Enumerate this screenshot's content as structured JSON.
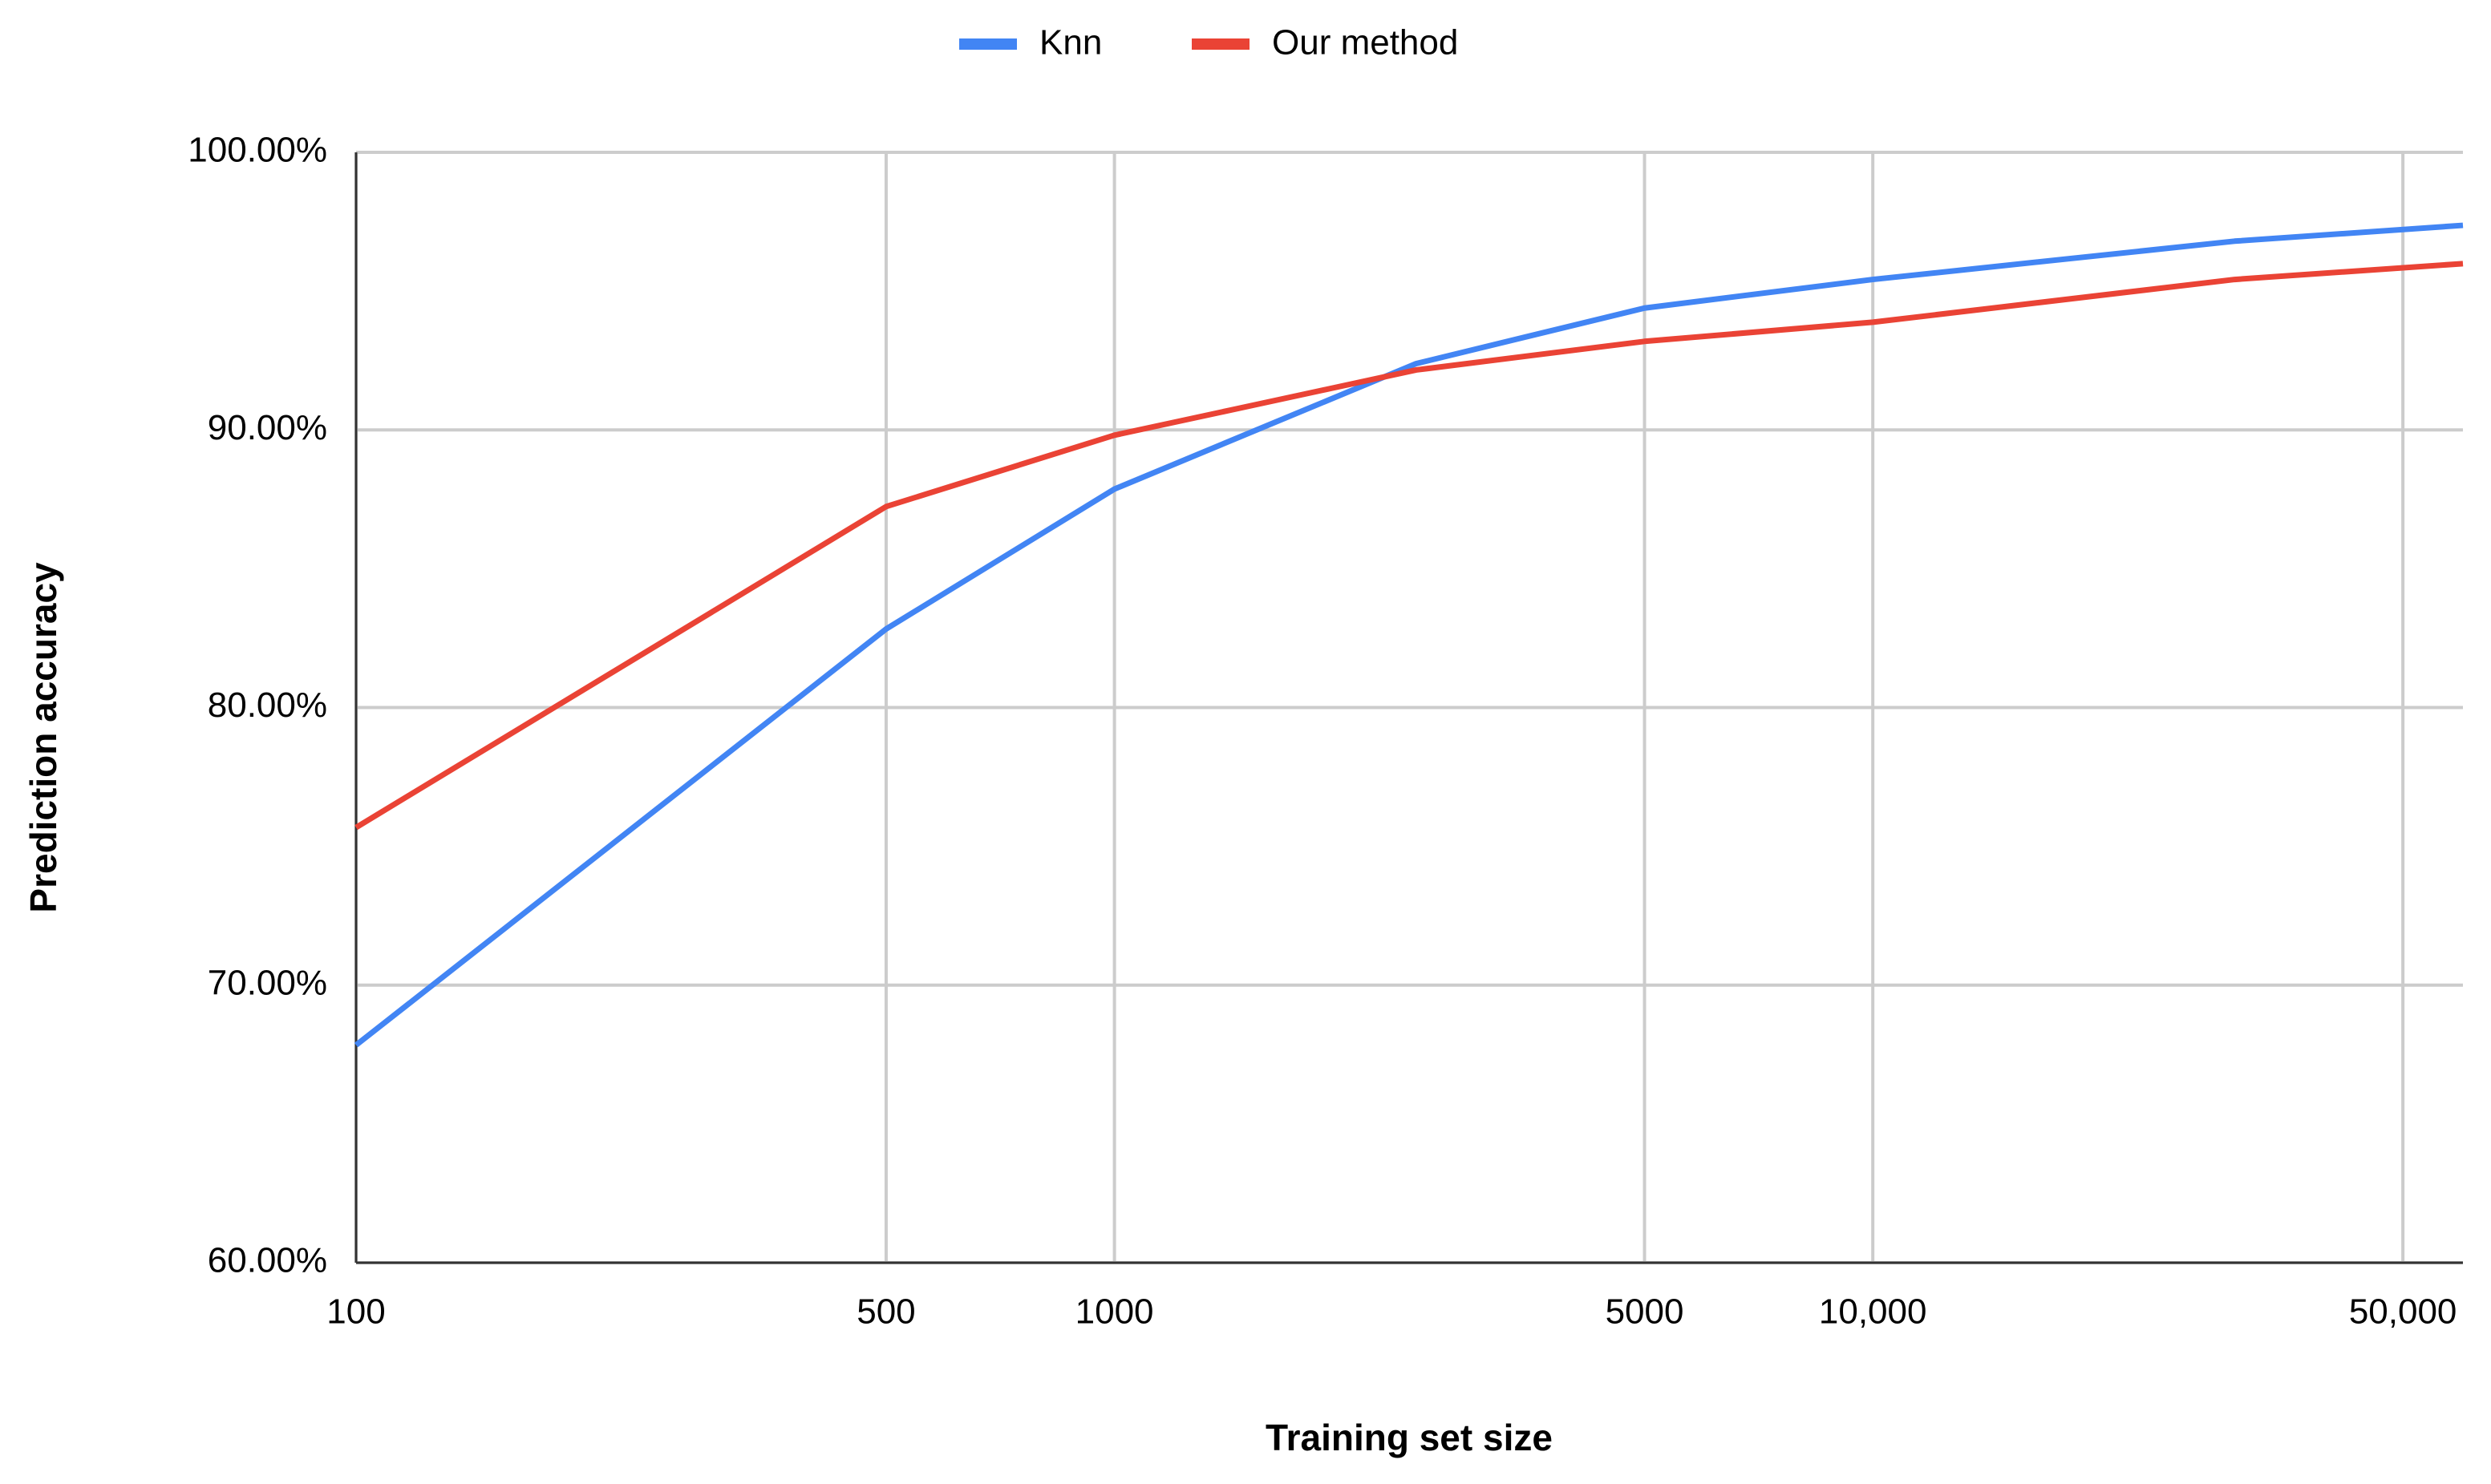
{
  "chart_data": {
    "type": "line",
    "x_label": "Training set size",
    "y_label": "Prediction accuracy",
    "x": [
      100,
      500,
      1000,
      2500,
      5000,
      10000,
      30000,
      60000
    ],
    "series": [
      {
        "name": "Knn",
        "color": "#4285f4",
        "values": [
          67.84,
          82.83,
          87.87,
          92.39,
          94.39,
          95.42,
          96.8,
          97.37
        ]
      },
      {
        "name": "Our method",
        "color": "#ea4335",
        "values": [
          75.68,
          87.24,
          89.81,
          92.16,
          93.19,
          93.88,
          95.42,
          95.99
        ]
      }
    ],
    "xlim": [
      100,
      60000
    ],
    "x_log_scale": true,
    "xticks": [
      100,
      500,
      1000,
      5000,
      {
        "value": 10000,
        "label": "10,000"
      },
      {
        "value": 50000,
        "label": "50,000"
      }
    ],
    "ylim": [
      60,
      100
    ],
    "yticks": [
      {
        "value": 60,
        "label": "60.00%"
      },
      {
        "value": 70,
        "label": "70.00%"
      },
      {
        "value": 80,
        "label": "80.00%"
      },
      {
        "value": 90,
        "label": "90.00%"
      },
      {
        "value": 100,
        "label": "100.00%"
      }
    ],
    "grid": true,
    "legend_position": "top"
  }
}
